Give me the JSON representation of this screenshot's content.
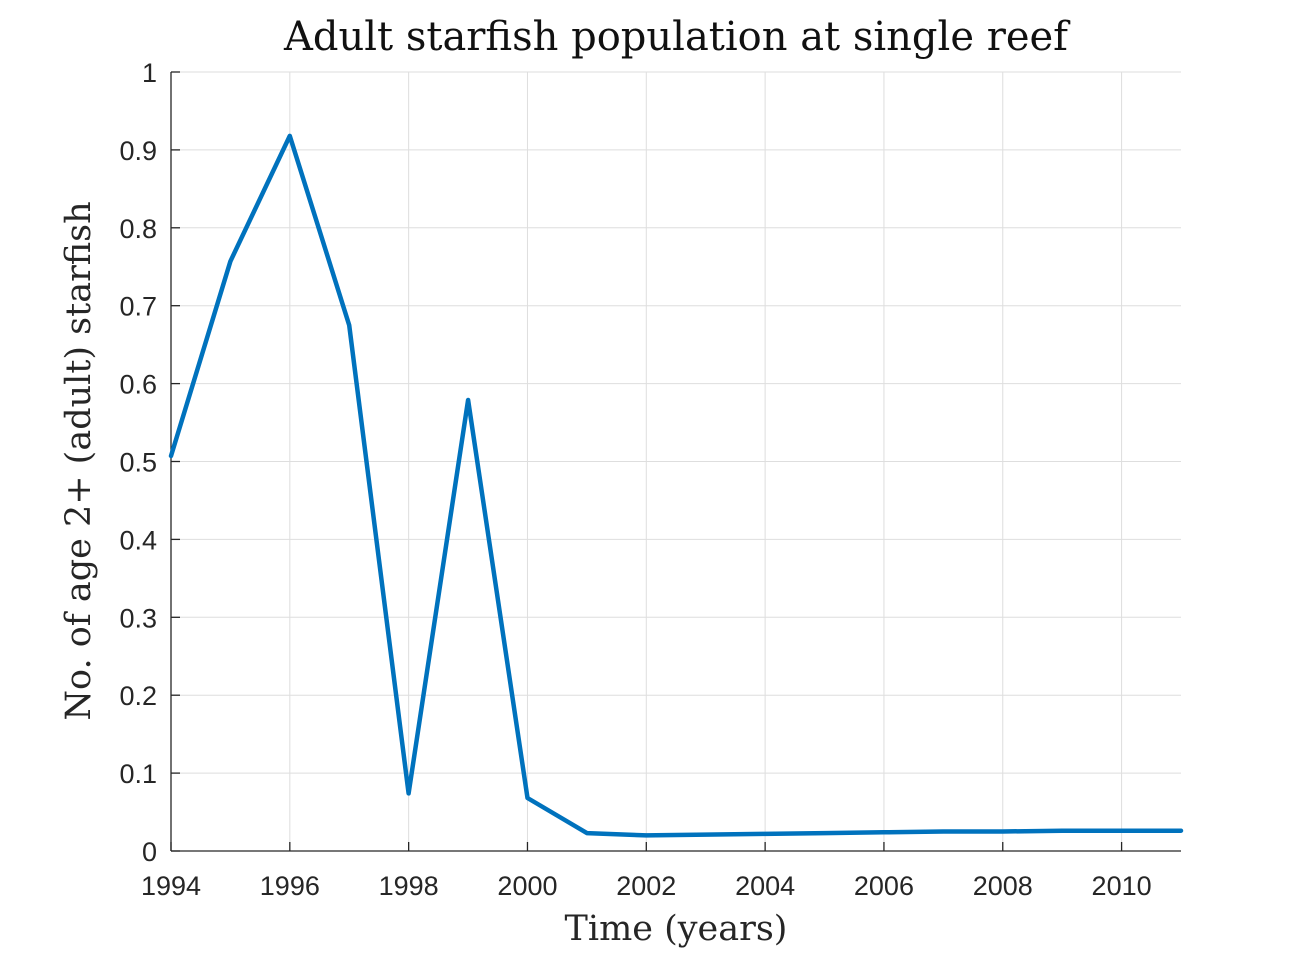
{
  "chart_data": {
    "type": "line",
    "title": "Adult starfish population at single reef",
    "xlabel": "Time (years)",
    "ylabel": "No. of age 2+ (adult) starfish",
    "xlim": [
      1994,
      2011
    ],
    "ylim": [
      0,
      1
    ],
    "xticks": [
      1994,
      1996,
      1998,
      2000,
      2002,
      2004,
      2006,
      2008,
      2010
    ],
    "xtick_labels": [
      "1994",
      "1996",
      "1998",
      "2000",
      "2002",
      "2004",
      "2006",
      "2008",
      "2010"
    ],
    "yticks": [
      0,
      0.1,
      0.2,
      0.3,
      0.4,
      0.5,
      0.6,
      0.7,
      0.8,
      0.9,
      1
    ],
    "ytick_labels": [
      "0",
      "0.1",
      "0.2",
      "0.3",
      "0.4",
      "0.5",
      "0.6",
      "0.7",
      "0.8",
      "0.9",
      "1"
    ],
    "grid": true,
    "legend": "none",
    "series": [
      {
        "color": "#0072BD",
        "x": [
          1994,
          1995,
          1996,
          1997,
          1998,
          1999,
          2000,
          2001,
          2002,
          2003,
          2004,
          2005,
          2006,
          2007,
          2008,
          2009,
          2010,
          2011
        ],
        "y": [
          0.507,
          0.757,
          0.918,
          0.675,
          0.074,
          0.579,
          0.068,
          0.023,
          0.02,
          0.021,
          0.022,
          0.023,
          0.024,
          0.025,
          0.025,
          0.026,
          0.026,
          0.026
        ]
      }
    ]
  }
}
